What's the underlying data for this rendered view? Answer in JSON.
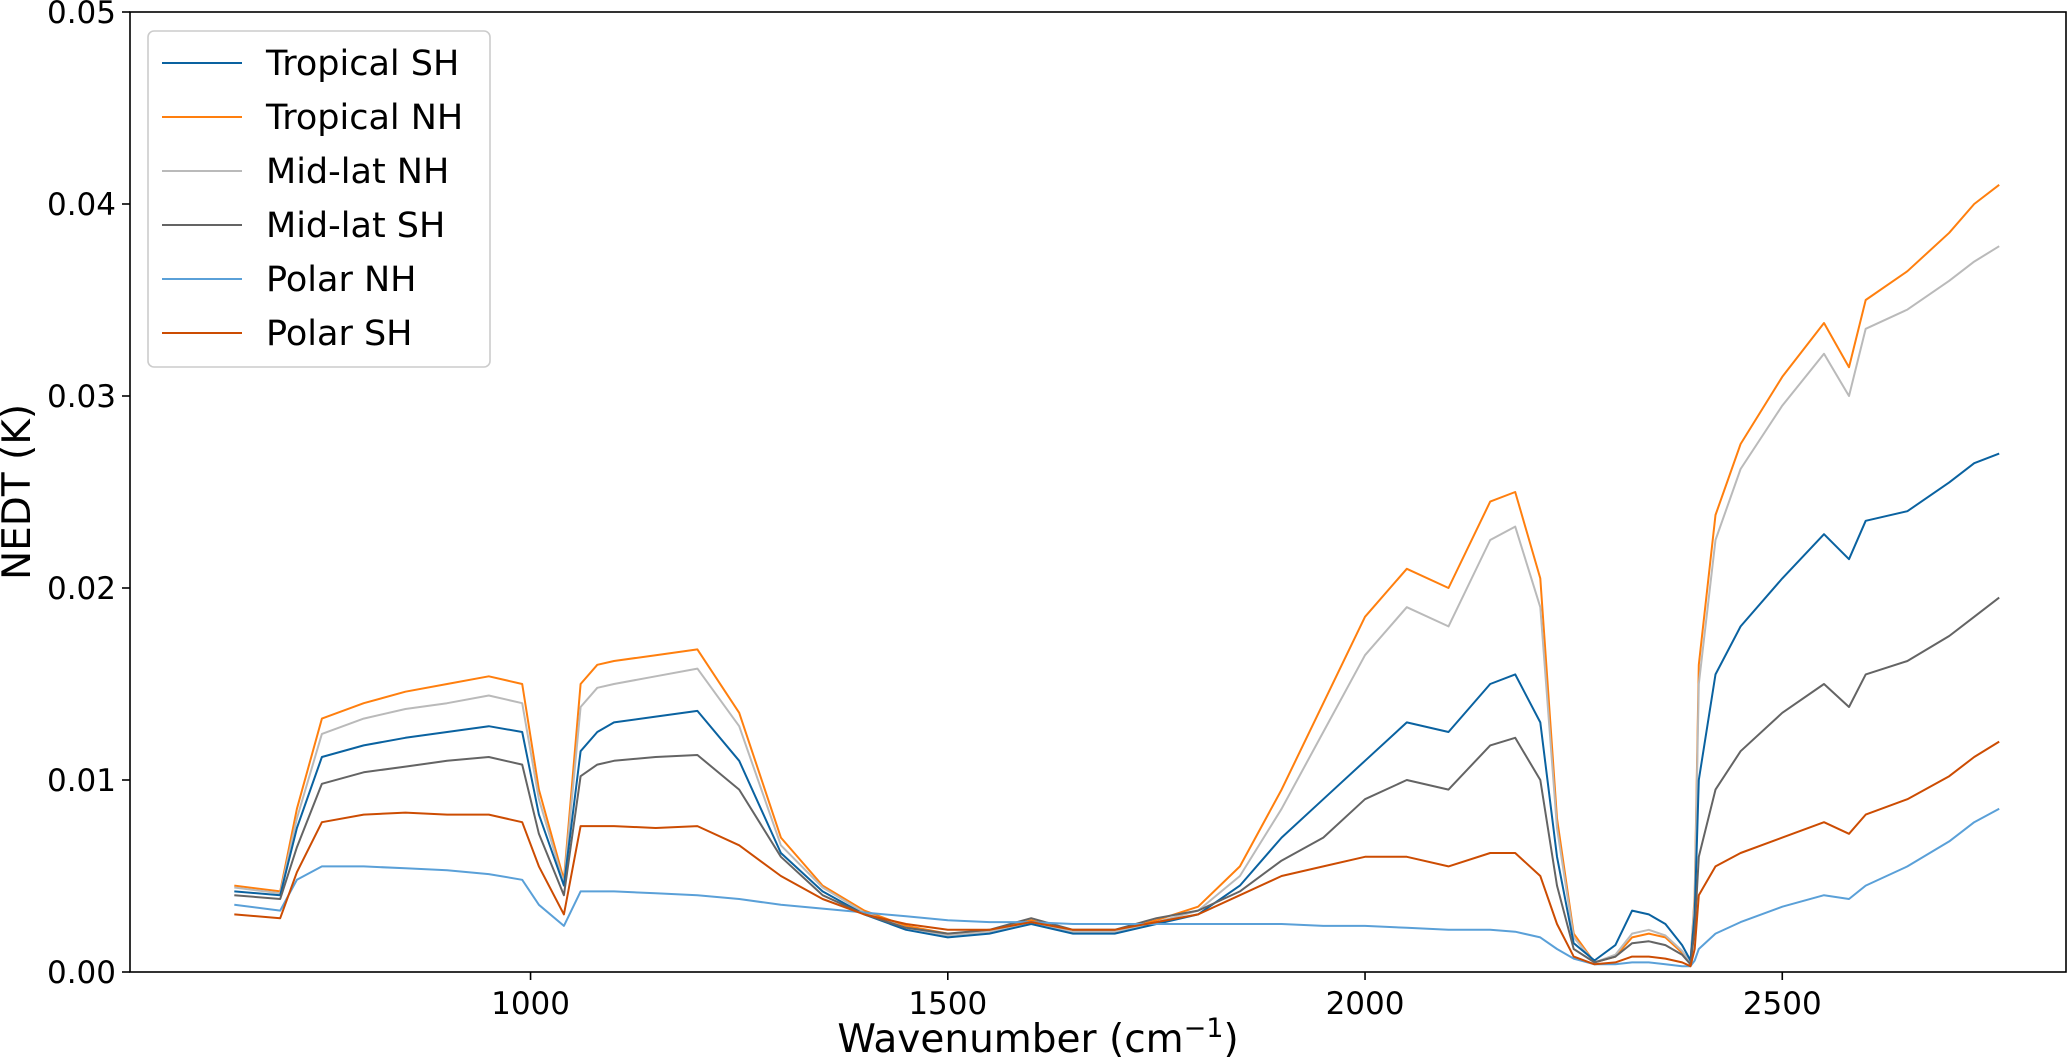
{
  "chart_data": {
    "type": "line",
    "title": "",
    "xlabel": "Wavenumber (cm",
    "xlabel_superscript": "−1",
    "xlabel_suffix": ")",
    "ylabel": "NEDT (K)",
    "xlim": [
      520,
      2840
    ],
    "ylim": [
      0,
      0.05
    ],
    "xticks": [
      1000,
      1500,
      2000,
      2500
    ],
    "xtick_labels": [
      "1000",
      "1500",
      "2000",
      "2500"
    ],
    "yticks": [
      0,
      0.01,
      0.02,
      0.03,
      0.04,
      0.05
    ],
    "ytick_labels": [
      "0.00",
      "0.01",
      "0.02",
      "0.03",
      "0.04",
      "0.05"
    ],
    "grid": false,
    "legend_position": "top-left",
    "x": [
      645,
      700,
      720,
      750,
      800,
      850,
      900,
      950,
      990,
      1010,
      1040,
      1060,
      1080,
      1100,
      1150,
      1200,
      1250,
      1300,
      1350,
      1400,
      1450,
      1500,
      1550,
      1600,
      1650,
      1700,
      1750,
      1800,
      1850,
      1900,
      1950,
      2000,
      2050,
      2100,
      2150,
      2180,
      2210,
      2230,
      2250,
      2275,
      2300,
      2320,
      2340,
      2360,
      2380,
      2390,
      2395,
      2400,
      2420,
      2450,
      2500,
      2550,
      2580,
      2600,
      2650,
      2700,
      2730,
      2760
    ],
    "series": [
      {
        "name": "Tropical SH",
        "color": "#0a62a0",
        "values": [
          0.0042,
          0.004,
          0.0075,
          0.0112,
          0.0118,
          0.0122,
          0.0125,
          0.0128,
          0.0125,
          0.0082,
          0.0045,
          0.0115,
          0.0125,
          0.013,
          0.0133,
          0.0136,
          0.011,
          0.0062,
          0.0042,
          0.003,
          0.0022,
          0.0018,
          0.002,
          0.0025,
          0.002,
          0.002,
          0.0025,
          0.003,
          0.0045,
          0.007,
          0.009,
          0.011,
          0.013,
          0.0125,
          0.015,
          0.0155,
          0.013,
          0.006,
          0.0015,
          0.0006,
          0.0014,
          0.0032,
          0.003,
          0.0025,
          0.0014,
          0.0006,
          0.003,
          0.01,
          0.0155,
          0.018,
          0.0205,
          0.0228,
          0.0215,
          0.0235,
          0.024,
          0.0255,
          0.0265,
          0.027
        ]
      },
      {
        "name": "Tropical NH",
        "color": "#ff7f0e",
        "values": [
          0.0045,
          0.0042,
          0.0085,
          0.0132,
          0.014,
          0.0146,
          0.015,
          0.0154,
          0.015,
          0.0095,
          0.0048,
          0.015,
          0.016,
          0.0162,
          0.0165,
          0.0168,
          0.0135,
          0.007,
          0.0045,
          0.0032,
          0.0024,
          0.002,
          0.0021,
          0.0027,
          0.0021,
          0.0021,
          0.0027,
          0.0034,
          0.0055,
          0.0095,
          0.014,
          0.0185,
          0.021,
          0.02,
          0.0245,
          0.025,
          0.0205,
          0.008,
          0.002,
          0.0005,
          0.0008,
          0.0018,
          0.002,
          0.0018,
          0.001,
          0.0005,
          0.004,
          0.016,
          0.0238,
          0.0275,
          0.031,
          0.0338,
          0.0315,
          0.035,
          0.0365,
          0.0385,
          0.04,
          0.041
        ]
      },
      {
        "name": "Mid-lat NH",
        "color": "#bababa",
        "values": [
          0.0044,
          0.0041,
          0.008,
          0.0124,
          0.0132,
          0.0137,
          0.014,
          0.0144,
          0.014,
          0.009,
          0.0046,
          0.0138,
          0.0148,
          0.015,
          0.0154,
          0.0158,
          0.0128,
          0.0066,
          0.0044,
          0.0031,
          0.0023,
          0.0019,
          0.0021,
          0.0026,
          0.0021,
          0.0021,
          0.0026,
          0.0032,
          0.005,
          0.0085,
          0.0125,
          0.0165,
          0.019,
          0.018,
          0.0225,
          0.0232,
          0.019,
          0.0075,
          0.0018,
          0.0005,
          0.0009,
          0.002,
          0.0022,
          0.0019,
          0.0011,
          0.0005,
          0.0038,
          0.015,
          0.0225,
          0.0262,
          0.0295,
          0.0322,
          0.03,
          0.0335,
          0.0345,
          0.036,
          0.037,
          0.0378
        ]
      },
      {
        "name": "Mid-lat SH",
        "color": "#646464",
        "values": [
          0.004,
          0.0038,
          0.0065,
          0.0098,
          0.0104,
          0.0107,
          0.011,
          0.0112,
          0.0108,
          0.0072,
          0.004,
          0.0102,
          0.0108,
          0.011,
          0.0112,
          0.0113,
          0.0095,
          0.006,
          0.004,
          0.003,
          0.0023,
          0.002,
          0.0022,
          0.0028,
          0.0022,
          0.0022,
          0.0028,
          0.0032,
          0.0042,
          0.0058,
          0.007,
          0.009,
          0.01,
          0.0095,
          0.0118,
          0.0122,
          0.01,
          0.0045,
          0.0012,
          0.0005,
          0.0008,
          0.0015,
          0.0016,
          0.0014,
          0.0009,
          0.0004,
          0.0022,
          0.006,
          0.0095,
          0.0115,
          0.0135,
          0.015,
          0.0138,
          0.0155,
          0.0162,
          0.0175,
          0.0185,
          0.0195
        ]
      },
      {
        "name": "Polar NH",
        "color": "#5aa0d8",
        "values": [
          0.0035,
          0.0032,
          0.0048,
          0.0055,
          0.0055,
          0.0054,
          0.0053,
          0.0051,
          0.0048,
          0.0035,
          0.0024,
          0.0042,
          0.0042,
          0.0042,
          0.0041,
          0.004,
          0.0038,
          0.0035,
          0.0033,
          0.0031,
          0.0029,
          0.0027,
          0.0026,
          0.0026,
          0.0025,
          0.0025,
          0.0025,
          0.0025,
          0.0025,
          0.0025,
          0.0024,
          0.0024,
          0.0023,
          0.0022,
          0.0022,
          0.0021,
          0.0018,
          0.0012,
          0.0007,
          0.0004,
          0.0004,
          0.0005,
          0.0005,
          0.0004,
          0.0003,
          0.0003,
          0.0006,
          0.0012,
          0.002,
          0.0026,
          0.0034,
          0.004,
          0.0038,
          0.0045,
          0.0055,
          0.0068,
          0.0078,
          0.0085
        ]
      },
      {
        "name": "Polar SH",
        "color": "#cc4c02",
        "values": [
          0.003,
          0.0028,
          0.0052,
          0.0078,
          0.0082,
          0.0083,
          0.0082,
          0.0082,
          0.0078,
          0.0055,
          0.003,
          0.0076,
          0.0076,
          0.0076,
          0.0075,
          0.0076,
          0.0066,
          0.005,
          0.0038,
          0.003,
          0.0025,
          0.0022,
          0.0022,
          0.0026,
          0.0022,
          0.0022,
          0.0026,
          0.003,
          0.004,
          0.005,
          0.0055,
          0.006,
          0.006,
          0.0055,
          0.0062,
          0.0062,
          0.005,
          0.0025,
          0.0008,
          0.0004,
          0.0005,
          0.0008,
          0.0008,
          0.0007,
          0.0005,
          0.0003,
          0.0012,
          0.004,
          0.0055,
          0.0062,
          0.007,
          0.0078,
          0.0072,
          0.0082,
          0.009,
          0.0102,
          0.0112,
          0.012
        ]
      }
    ]
  }
}
